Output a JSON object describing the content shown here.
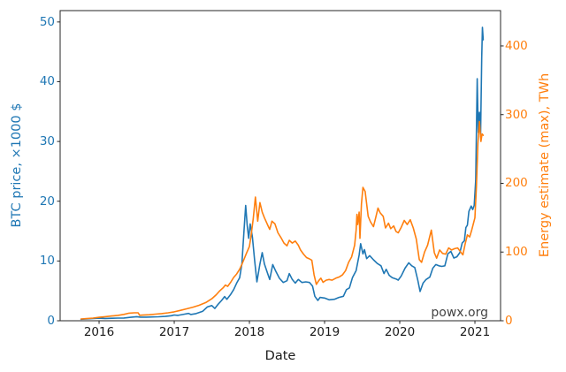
{
  "watermark": "powx.org",
  "chart_data": {
    "type": "line",
    "title": "",
    "xlabel": "Date",
    "grid": false,
    "legend": "none",
    "x_ticks": [
      "2016",
      "2017",
      "2018",
      "2019",
      "2020",
      "2021"
    ],
    "x_tick_values": [
      2016,
      2017,
      2018,
      2019,
      2020,
      2021
    ],
    "x_range": [
      2015.482,
      2021.341
    ],
    "left_axis": {
      "label": "BTC price, ×1000 $",
      "color": "#1f77b4",
      "ticks": [
        0,
        10,
        20,
        30,
        40,
        50
      ],
      "range": [
        0,
        51.9
      ]
    },
    "right_axis": {
      "label": "Energy estimate (max), TWh",
      "color": "#ff7f0e",
      "ticks": [
        0,
        100,
        200,
        300,
        400
      ],
      "range": [
        0,
        451.4
      ]
    },
    "text_color": "#1a1a1a",
    "watermark_color": "#444444",
    "series": [
      {
        "name": "BTC price",
        "axis": "left",
        "color": "#1f77b4",
        "points": [
          [
            2015.76,
            0.25
          ],
          [
            2015.83,
            0.3
          ],
          [
            2015.92,
            0.38
          ],
          [
            2016.0,
            0.43
          ],
          [
            2016.08,
            0.39
          ],
          [
            2016.17,
            0.42
          ],
          [
            2016.25,
            0.45
          ],
          [
            2016.33,
            0.46
          ],
          [
            2016.42,
            0.57
          ],
          [
            2016.5,
            0.68
          ],
          [
            2016.55,
            0.61
          ],
          [
            2016.63,
            0.6
          ],
          [
            2016.71,
            0.63
          ],
          [
            2016.79,
            0.66
          ],
          [
            2016.88,
            0.73
          ],
          [
            2016.96,
            0.85
          ],
          [
            2017.0,
            0.96
          ],
          [
            2017.05,
            0.9
          ],
          [
            2017.13,
            1.1
          ],
          [
            2017.19,
            1.22
          ],
          [
            2017.22,
            1.05
          ],
          [
            2017.29,
            1.2
          ],
          [
            2017.38,
            1.6
          ],
          [
            2017.44,
            2.3
          ],
          [
            2017.5,
            2.55
          ],
          [
            2017.54,
            2.05
          ],
          [
            2017.58,
            2.7
          ],
          [
            2017.63,
            3.4
          ],
          [
            2017.67,
            4.05
          ],
          [
            2017.7,
            3.6
          ],
          [
            2017.75,
            4.4
          ],
          [
            2017.79,
            5.2
          ],
          [
            2017.83,
            6.3
          ],
          [
            2017.87,
            7.2
          ],
          [
            2017.9,
            9.5
          ],
          [
            2017.93,
            15.5
          ],
          [
            2017.95,
            19.3
          ],
          [
            2017.97,
            16.0
          ],
          [
            2017.99,
            13.8
          ],
          [
            2018.01,
            16.2
          ],
          [
            2018.04,
            14.0
          ],
          [
            2018.07,
            10.0
          ],
          [
            2018.1,
            6.5
          ],
          [
            2018.14,
            9.5
          ],
          [
            2018.17,
            11.4
          ],
          [
            2018.2,
            9.5
          ],
          [
            2018.24,
            8.0
          ],
          [
            2018.27,
            6.9
          ],
          [
            2018.31,
            9.4
          ],
          [
            2018.35,
            8.3
          ],
          [
            2018.4,
            7.1
          ],
          [
            2018.45,
            6.4
          ],
          [
            2018.5,
            6.7
          ],
          [
            2018.53,
            7.9
          ],
          [
            2018.57,
            6.9
          ],
          [
            2018.61,
            6.3
          ],
          [
            2018.65,
            6.9
          ],
          [
            2018.7,
            6.4
          ],
          [
            2018.75,
            6.5
          ],
          [
            2018.8,
            6.4
          ],
          [
            2018.84,
            5.8
          ],
          [
            2018.87,
            4.1
          ],
          [
            2018.91,
            3.4
          ],
          [
            2018.94,
            3.9
          ],
          [
            2019.0,
            3.8
          ],
          [
            2019.06,
            3.5
          ],
          [
            2019.13,
            3.6
          ],
          [
            2019.19,
            3.9
          ],
          [
            2019.25,
            4.1
          ],
          [
            2019.29,
            5.2
          ],
          [
            2019.33,
            5.5
          ],
          [
            2019.37,
            7.2
          ],
          [
            2019.42,
            8.4
          ],
          [
            2019.46,
            11.0
          ],
          [
            2019.48,
            12.9
          ],
          [
            2019.51,
            11.2
          ],
          [
            2019.53,
            11.9
          ],
          [
            2019.56,
            10.4
          ],
          [
            2019.6,
            10.9
          ],
          [
            2019.65,
            10.2
          ],
          [
            2019.7,
            9.6
          ],
          [
            2019.75,
            9.2
          ],
          [
            2019.79,
            7.9
          ],
          [
            2019.82,
            8.6
          ],
          [
            2019.86,
            7.6
          ],
          [
            2019.9,
            7.2
          ],
          [
            2019.95,
            7.0
          ],
          [
            2019.98,
            6.8
          ],
          [
            2020.02,
            7.5
          ],
          [
            2020.07,
            8.8
          ],
          [
            2020.12,
            9.7
          ],
          [
            2020.16,
            9.2
          ],
          [
            2020.2,
            8.9
          ],
          [
            2020.24,
            6.8
          ],
          [
            2020.27,
            4.9
          ],
          [
            2020.31,
            6.3
          ],
          [
            2020.35,
            6.9
          ],
          [
            2020.4,
            7.3
          ],
          [
            2020.44,
            8.8
          ],
          [
            2020.48,
            9.4
          ],
          [
            2020.52,
            9.2
          ],
          [
            2020.56,
            9.1
          ],
          [
            2020.6,
            9.2
          ],
          [
            2020.64,
            11.2
          ],
          [
            2020.68,
            11.6
          ],
          [
            2020.72,
            10.5
          ],
          [
            2020.76,
            10.7
          ],
          [
            2020.8,
            11.4
          ],
          [
            2020.83,
            13.0
          ],
          [
            2020.86,
            13.4
          ],
          [
            2020.88,
            15.6
          ],
          [
            2020.9,
            16.0
          ],
          [
            2020.92,
            18.3
          ],
          [
            2020.95,
            19.2
          ],
          [
            2020.97,
            18.6
          ],
          [
            2020.99,
            19.3
          ],
          [
            2021.01,
            23.5
          ],
          [
            2021.03,
            40.5
          ],
          [
            2021.045,
            31.5
          ],
          [
            2021.06,
            34.9
          ],
          [
            2021.075,
            30.8
          ],
          [
            2021.09,
            44.0
          ],
          [
            2021.1,
            49.1
          ],
          [
            2021.11,
            47.0
          ]
        ]
      },
      {
        "name": "Energy estimate (max)",
        "axis": "right",
        "color": "#ff7f0e",
        "points": [
          [
            2015.76,
            2.6
          ],
          [
            2015.83,
            3.1
          ],
          [
            2015.92,
            3.9
          ],
          [
            2016.0,
            5.0
          ],
          [
            2016.08,
            5.9
          ],
          [
            2016.17,
            6.9
          ],
          [
            2016.25,
            7.8
          ],
          [
            2016.33,
            9.2
          ],
          [
            2016.4,
            11.0
          ],
          [
            2016.47,
            11.6
          ],
          [
            2016.52,
            11.6
          ],
          [
            2016.54,
            8.0
          ],
          [
            2016.58,
            8.2
          ],
          [
            2016.67,
            8.8
          ],
          [
            2016.75,
            9.6
          ],
          [
            2016.83,
            10.4
          ],
          [
            2016.92,
            11.6
          ],
          [
            2017.0,
            13.0
          ],
          [
            2017.08,
            15.0
          ],
          [
            2017.17,
            17.5
          ],
          [
            2017.25,
            19.8
          ],
          [
            2017.33,
            22.5
          ],
          [
            2017.42,
            26.5
          ],
          [
            2017.5,
            32.0
          ],
          [
            2017.56,
            38.0
          ],
          [
            2017.6,
            43.0
          ],
          [
            2017.65,
            48.0
          ],
          [
            2017.68,
            52.0
          ],
          [
            2017.71,
            50.0
          ],
          [
            2017.75,
            56.0
          ],
          [
            2017.79,
            63.0
          ],
          [
            2017.83,
            68.0
          ],
          [
            2017.87,
            75.0
          ],
          [
            2017.9,
            82.0
          ],
          [
            2017.93,
            90.0
          ],
          [
            2017.96,
            98.0
          ],
          [
            2018.0,
            108
          ],
          [
            2018.02,
            122
          ],
          [
            2018.05,
            148
          ],
          [
            2018.08,
            180
          ],
          [
            2018.11,
            145
          ],
          [
            2018.14,
            172
          ],
          [
            2018.17,
            158
          ],
          [
            2018.2,
            150
          ],
          [
            2018.24,
            140
          ],
          [
            2018.27,
            133
          ],
          [
            2018.3,
            145
          ],
          [
            2018.34,
            141
          ],
          [
            2018.38,
            128
          ],
          [
            2018.42,
            121
          ],
          [
            2018.46,
            113
          ],
          [
            2018.5,
            109
          ],
          [
            2018.53,
            117
          ],
          [
            2018.57,
            113
          ],
          [
            2018.61,
            116
          ],
          [
            2018.65,
            110
          ],
          [
            2018.68,
            103
          ],
          [
            2018.72,
            97
          ],
          [
            2018.76,
            92
          ],
          [
            2018.8,
            90
          ],
          [
            2018.83,
            88
          ],
          [
            2018.86,
            67
          ],
          [
            2018.89,
            53
          ],
          [
            2018.92,
            58
          ],
          [
            2018.95,
            62
          ],
          [
            2018.98,
            56
          ],
          [
            2019.02,
            59
          ],
          [
            2019.06,
            60
          ],
          [
            2019.1,
            59
          ],
          [
            2019.15,
            62
          ],
          [
            2019.2,
            64
          ],
          [
            2019.24,
            67
          ],
          [
            2019.28,
            73
          ],
          [
            2019.32,
            85
          ],
          [
            2019.36,
            93
          ],
          [
            2019.4,
            110
          ],
          [
            2019.42,
            132
          ],
          [
            2019.43,
            155
          ],
          [
            2019.44,
            140
          ],
          [
            2019.46,
            158
          ],
          [
            2019.47,
            120
          ],
          [
            2019.49,
            170
          ],
          [
            2019.51,
            194
          ],
          [
            2019.54,
            188
          ],
          [
            2019.58,
            152
          ],
          [
            2019.61,
            144
          ],
          [
            2019.65,
            137
          ],
          [
            2019.68,
            150
          ],
          [
            2019.71,
            164
          ],
          [
            2019.74,
            157
          ],
          [
            2019.78,
            152
          ],
          [
            2019.81,
            135
          ],
          [
            2019.85,
            142
          ],
          [
            2019.88,
            134
          ],
          [
            2019.92,
            138
          ],
          [
            2019.95,
            130
          ],
          [
            2019.98,
            128
          ],
          [
            2020.02,
            136
          ],
          [
            2020.06,
            146
          ],
          [
            2020.1,
            140
          ],
          [
            2020.14,
            147
          ],
          [
            2020.18,
            135
          ],
          [
            2020.22,
            119
          ],
          [
            2020.26,
            89
          ],
          [
            2020.29,
            85
          ],
          [
            2020.33,
            100
          ],
          [
            2020.37,
            110
          ],
          [
            2020.42,
            132
          ],
          [
            2020.46,
            99
          ],
          [
            2020.49,
            91
          ],
          [
            2020.53,
            103
          ],
          [
            2020.57,
            98
          ],
          [
            2020.61,
            97
          ],
          [
            2020.65,
            106
          ],
          [
            2020.69,
            103
          ],
          [
            2020.73,
            105
          ],
          [
            2020.77,
            106
          ],
          [
            2020.81,
            100
          ],
          [
            2020.84,
            96
          ],
          [
            2020.87,
            112
          ],
          [
            2020.9,
            125
          ],
          [
            2020.93,
            122
          ],
          [
            2020.96,
            133
          ],
          [
            2021.0,
            150
          ],
          [
            2021.02,
            195
          ],
          [
            2021.04,
            258
          ],
          [
            2021.06,
            290
          ],
          [
            2021.08,
            261
          ],
          [
            2021.095,
            272
          ],
          [
            2021.11,
            270
          ]
        ]
      }
    ]
  }
}
